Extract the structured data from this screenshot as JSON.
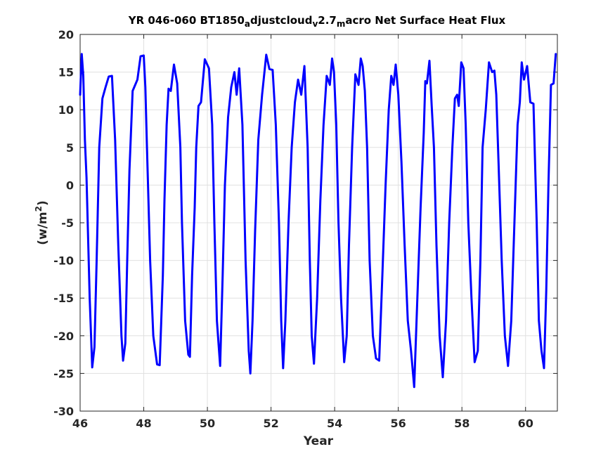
{
  "chart_data": {
    "type": "line",
    "title_parts": [
      {
        "text": "YR 046-060 BT1850",
        "sub": false
      },
      {
        "text": "a",
        "sub": true
      },
      {
        "text": "djustcloud",
        "sub": false
      },
      {
        "text": "v",
        "sub": true
      },
      {
        "text": "2.7",
        "sub": false
      },
      {
        "text": "m",
        "sub": true
      },
      {
        "text": "acro Net Surface Heat Flux",
        "sub": false
      }
    ],
    "xlabel": "Year",
    "ylabel": {
      "base": "(w/m",
      "sup": "2",
      "close": ")"
    },
    "xlim": [
      46,
      61
    ],
    "ylim": [
      -30,
      20
    ],
    "xticks": [
      46,
      48,
      50,
      52,
      54,
      56,
      58,
      60
    ],
    "yticks": [
      -30,
      -25,
      -20,
      -15,
      -10,
      -5,
      0,
      5,
      10,
      15,
      20
    ],
    "grid": true,
    "line_color": "#0000ff",
    "series": [
      {
        "x": [
          46.0,
          46.05,
          46.1,
          46.15,
          46.2,
          46.3,
          46.38,
          46.45,
          46.52,
          46.6,
          46.7,
          46.8,
          46.9,
          47.0,
          47.1,
          47.2,
          47.3,
          47.35,
          47.42,
          47.48,
          47.55,
          47.65,
          47.7,
          47.8,
          47.9,
          48.0,
          48.05,
          48.1,
          48.2,
          48.3,
          48.42,
          48.5,
          48.6,
          48.65,
          48.72,
          48.78,
          48.85,
          48.95,
          49.05,
          49.15,
          49.2,
          49.3,
          49.4,
          49.45,
          49.52,
          49.6,
          49.65,
          49.72,
          49.8,
          49.92,
          50.05,
          50.15,
          50.22,
          50.3,
          50.4,
          50.48,
          50.55,
          50.65,
          50.75,
          50.85,
          50.92,
          51.0,
          51.1,
          51.2,
          51.3,
          51.35,
          51.42,
          51.5,
          51.6,
          51.72,
          51.85,
          51.95,
          52.05,
          52.15,
          52.25,
          52.32,
          52.38,
          52.45,
          52.55,
          52.65,
          52.75,
          52.85,
          52.95,
          53.05,
          53.15,
          53.22,
          53.28,
          53.35,
          53.45,
          53.55,
          53.65,
          53.75,
          53.85,
          53.92,
          53.98,
          54.05,
          54.12,
          54.2,
          54.3,
          54.38,
          54.45,
          54.55,
          54.65,
          54.75,
          54.82,
          54.88,
          54.95,
          55.02,
          55.1,
          55.2,
          55.3,
          55.4,
          55.5,
          55.6,
          55.7,
          55.78,
          55.85,
          55.92,
          56.0,
          56.1,
          56.2,
          56.3,
          56.4,
          56.5,
          56.6,
          56.7,
          56.8,
          56.85,
          56.9,
          56.98,
          57.05,
          57.12,
          57.2,
          57.3,
          57.4,
          57.5,
          57.6,
          57.7,
          57.78,
          57.85,
          57.9,
          57.98,
          58.05,
          58.12,
          58.2,
          58.3,
          58.4,
          58.5,
          58.58,
          58.65,
          58.75,
          58.85,
          58.95,
          59.02,
          59.08,
          59.15,
          59.25,
          59.35,
          59.45,
          59.55,
          59.65,
          59.75,
          59.82,
          59.88,
          59.95,
          60.05,
          60.15,
          60.25,
          60.35,
          60.42,
          60.5,
          60.58,
          60.65,
          60.72,
          60.8,
          60.88,
          60.95
        ],
        "y": [
          12.0,
          17.4,
          14.5,
          6.0,
          1.0,
          -15.0,
          -24.2,
          -21.5,
          -10.0,
          5.0,
          11.5,
          13.0,
          14.4,
          14.5,
          6.0,
          -8.0,
          -20.0,
          -23.3,
          -21.0,
          -10.0,
          2.0,
          12.5,
          13.0,
          14.0,
          17.1,
          17.2,
          13.0,
          5.0,
          -10.0,
          -20.0,
          -23.8,
          -23.9,
          -12.0,
          -2.0,
          8.0,
          12.8,
          12.5,
          16.0,
          13.5,
          5.0,
          -5.0,
          -18.0,
          -22.5,
          -22.8,
          -12.0,
          -3.0,
          5.0,
          10.5,
          11.0,
          16.7,
          15.5,
          8.0,
          -5.0,
          -18.0,
          -24.0,
          -12.0,
          0.0,
          9.0,
          13.0,
          15.0,
          12.0,
          15.5,
          8.0,
          -10.0,
          -22.0,
          -25.0,
          -18.0,
          -6.0,
          6.0,
          12.0,
          17.3,
          15.4,
          15.3,
          8.0,
          -5.0,
          -18.0,
          -24.3,
          -18.0,
          -5.0,
          5.0,
          11.0,
          14.0,
          12.0,
          15.8,
          5.0,
          -10.0,
          -20.0,
          -23.7,
          -15.0,
          -2.0,
          8.0,
          14.5,
          13.3,
          16.8,
          15.0,
          8.0,
          -5.0,
          -15.0,
          -23.5,
          -20.0,
          -8.0,
          5.0,
          14.7,
          13.3,
          16.8,
          15.8,
          12.5,
          5.0,
          -10.0,
          -20.0,
          -23.0,
          -23.3,
          -12.0,
          0.0,
          10.0,
          14.5,
          13.3,
          16.0,
          12.0,
          3.0,
          -8.0,
          -18.0,
          -22.0,
          -26.8,
          -15.0,
          -3.0,
          7.0,
          13.8,
          13.5,
          16.5,
          10.5,
          5.0,
          -8.0,
          -20.0,
          -25.5,
          -18.0,
          -5.0,
          5.0,
          11.5,
          12.0,
          10.5,
          16.3,
          15.5,
          8.0,
          -5.0,
          -15.0,
          -23.5,
          -22.0,
          -10.0,
          5.0,
          10.0,
          16.3,
          15.0,
          15.2,
          12.0,
          3.0,
          -10.0,
          -20.0,
          -24.0,
          -18.0,
          -5.0,
          8.0,
          11.0,
          16.3,
          14.0,
          15.8,
          11.0,
          10.8,
          -5.0,
          -18.0,
          -22.0,
          -24.3,
          -14.0,
          0.0,
          13.3,
          13.5,
          17.4
        ]
      }
    ]
  }
}
